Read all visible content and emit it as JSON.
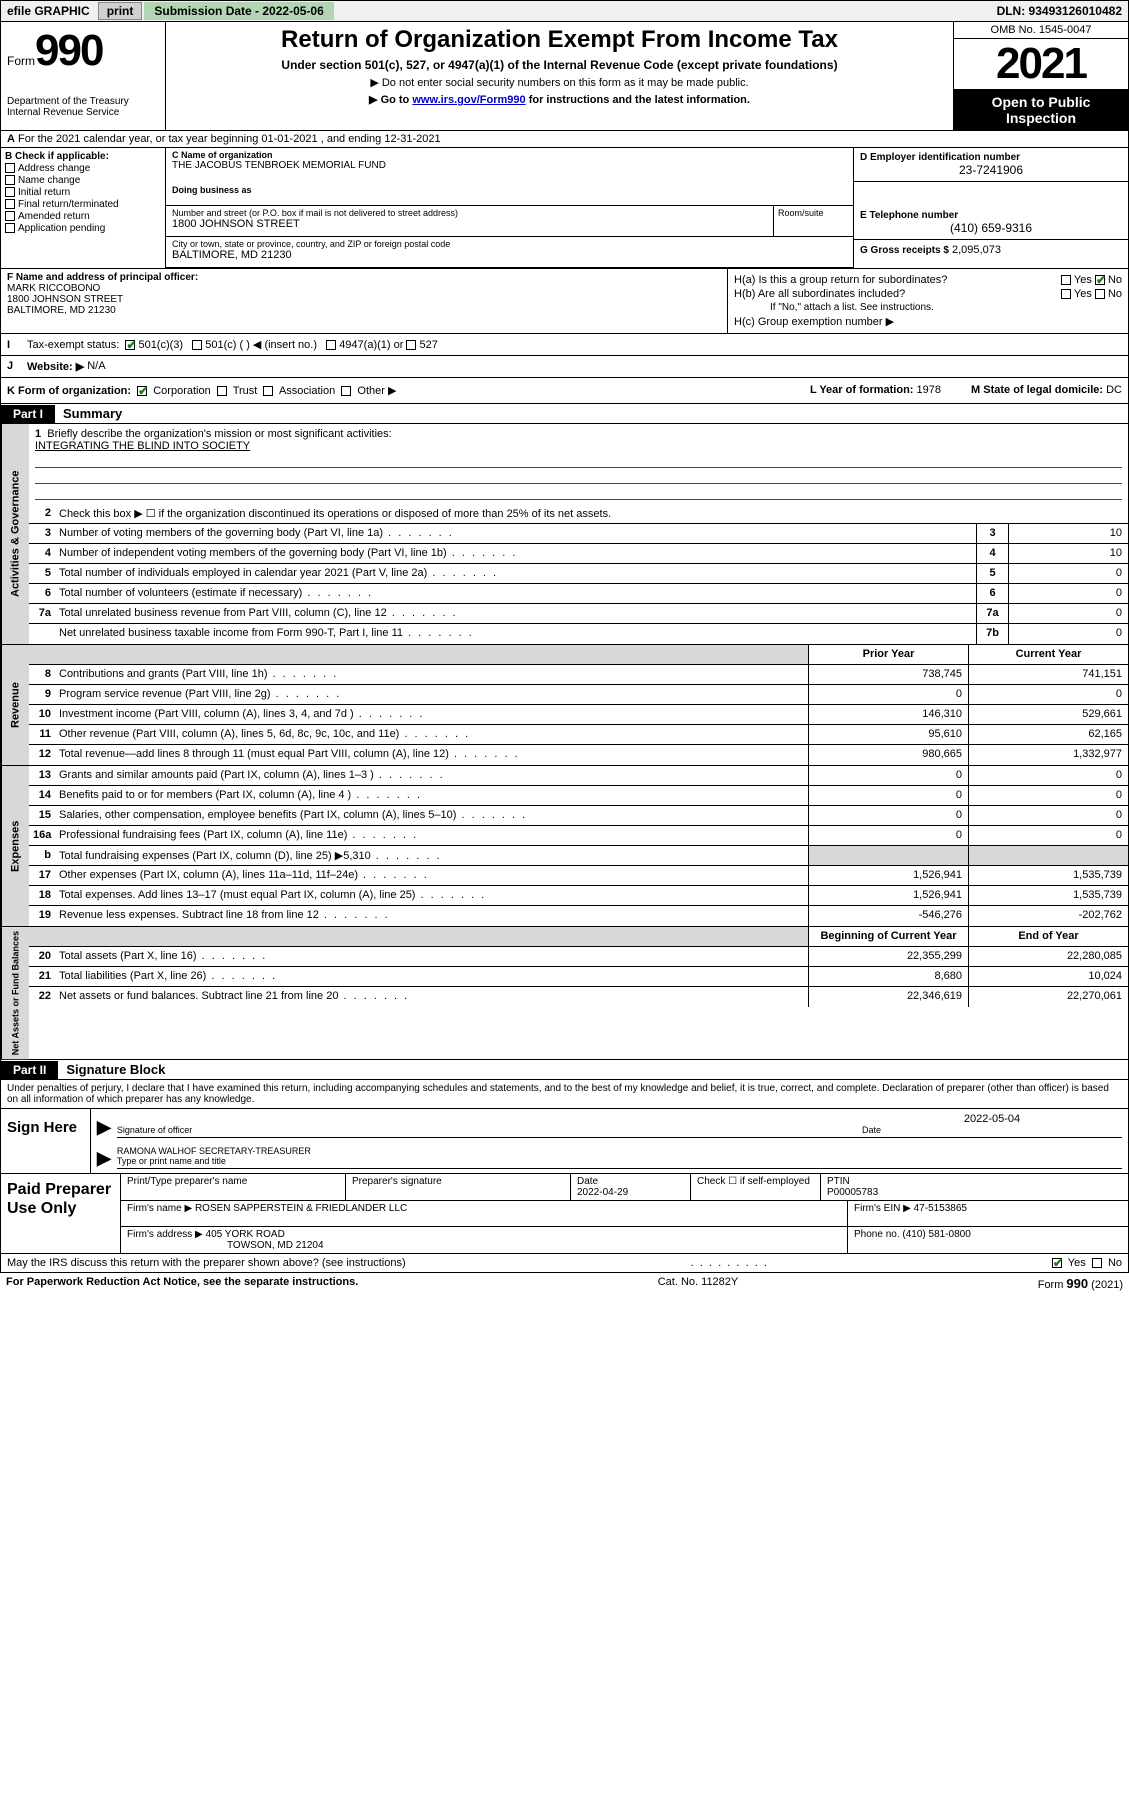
{
  "topbar": {
    "efile": "efile GRAPHIC",
    "print": "print",
    "sub_label": "Submission Date - 2022-05-06",
    "dln": "DLN: 93493126010482"
  },
  "hdr": {
    "form_word": "Form",
    "form_num": "990",
    "title": "Return of Organization Exempt From Income Tax",
    "sub1": "Under section 501(c), 527, or 4947(a)(1) of the Internal Revenue Code (except private foundations)",
    "sub2": "▶ Do not enter social security numbers on this form as it may be made public.",
    "sub3_pre": "▶ Go to ",
    "sub3_link": "www.irs.gov/Form990",
    "sub3_post": " for instructions and the latest information.",
    "dept": "Department of the Treasury\nInternal Revenue Service",
    "omb": "OMB No. 1545-0047",
    "year": "2021",
    "open": "Open to Public Inspection"
  },
  "row_a": "For the 2021 calendar year, or tax year beginning 01-01-2021   , and ending 12-31-2021",
  "b": {
    "hdr": "B Check if applicable:",
    "items": [
      "Address change",
      "Name change",
      "Initial return",
      "Final return/terminated",
      "Amended return",
      "Application pending"
    ]
  },
  "c": {
    "name_lbl": "C Name of organization",
    "name": "THE JACOBUS TENBROEK MEMORIAL FUND",
    "dba_lbl": "Doing business as",
    "addr_lbl": "Number and street (or P.O. box if mail is not delivered to street address)",
    "addr": "1800 JOHNSON STREET",
    "room_lbl": "Room/suite",
    "city_lbl": "City or town, state or province, country, and ZIP or foreign postal code",
    "city": "BALTIMORE, MD  21230"
  },
  "d": {
    "lbl": "D Employer identification number",
    "val": "23-7241906"
  },
  "e": {
    "lbl": "E Telephone number",
    "val": "(410) 659-9316"
  },
  "g": {
    "lbl": "G Gross receipts $",
    "val": "2,095,073"
  },
  "f": {
    "lbl": "F  Name and address of principal officer:",
    "name": "MARK RICCOBONO",
    "addr1": "1800 JOHNSON STREET",
    "addr2": "BALTIMORE, MD  21230"
  },
  "h": {
    "a_lbl": "H(a)  Is this a group return for subordinates?",
    "b_lbl": "H(b)  Are all subordinates included?",
    "b_note": "If \"No,\" attach a list. See instructions.",
    "c_lbl": "H(c)  Group exemption number ▶",
    "yes": "Yes",
    "no": "No"
  },
  "i": {
    "lbl": "Tax-exempt status:",
    "o1": "501(c)(3)",
    "o2": "501(c) (  ) ◀ (insert no.)",
    "o3": "4947(a)(1) or",
    "o4": "527"
  },
  "j": {
    "lbl": "Website: ▶",
    "val": "N/A"
  },
  "k": {
    "lbl": "K Form of organization:",
    "o1": "Corporation",
    "o2": "Trust",
    "o3": "Association",
    "o4": "Other ▶",
    "l_lbl": "L Year of formation:",
    "l_val": "1978",
    "m_lbl": "M State of legal domicile:",
    "m_val": "DC"
  },
  "part1": {
    "hdr": "Part I",
    "title": "Summary"
  },
  "briefly": {
    "num": "1",
    "lbl": "Briefly describe the organization's mission or most significant activities:",
    "val": "INTEGRATING THE BLIND INTO SOCIETY"
  },
  "gov_lines": [
    {
      "num": "2",
      "desc": "Check this box ▶ ☐  if the organization discontinued its operations or disposed of more than 25% of its net assets.",
      "box": "",
      "val": ""
    },
    {
      "num": "3",
      "desc": "Number of voting members of the governing body (Part VI, line 1a)",
      "box": "3",
      "val": "10"
    },
    {
      "num": "4",
      "desc": "Number of independent voting members of the governing body (Part VI, line 1b)",
      "box": "4",
      "val": "10"
    },
    {
      "num": "5",
      "desc": "Total number of individuals employed in calendar year 2021 (Part V, line 2a)",
      "box": "5",
      "val": "0"
    },
    {
      "num": "6",
      "desc": "Total number of volunteers (estimate if necessary)",
      "box": "6",
      "val": "0"
    },
    {
      "num": "7a",
      "desc": "Total unrelated business revenue from Part VIII, column (C), line 12",
      "box": "7a",
      "val": "0"
    },
    {
      "num": "",
      "desc": "Net unrelated business taxable income from Form 990-T, Part I, line 11",
      "box": "7b",
      "val": "0"
    }
  ],
  "rev_hdr": {
    "c1": "Prior Year",
    "c2": "Current Year"
  },
  "rev_lines": [
    {
      "num": "8",
      "desc": "Contributions and grants (Part VIII, line 1h)",
      "v1": "738,745",
      "v2": "741,151"
    },
    {
      "num": "9",
      "desc": "Program service revenue (Part VIII, line 2g)",
      "v1": "0",
      "v2": "0"
    },
    {
      "num": "10",
      "desc": "Investment income (Part VIII, column (A), lines 3, 4, and 7d )",
      "v1": "146,310",
      "v2": "529,661"
    },
    {
      "num": "11",
      "desc": "Other revenue (Part VIII, column (A), lines 5, 6d, 8c, 9c, 10c, and 11e)",
      "v1": "95,610",
      "v2": "62,165"
    },
    {
      "num": "12",
      "desc": "Total revenue—add lines 8 through 11 (must equal Part VIII, column (A), line 12)",
      "v1": "980,665",
      "v2": "1,332,977"
    }
  ],
  "exp_lines": [
    {
      "num": "13",
      "desc": "Grants and similar amounts paid (Part IX, column (A), lines 1–3 )",
      "v1": "0",
      "v2": "0"
    },
    {
      "num": "14",
      "desc": "Benefits paid to or for members (Part IX, column (A), line 4 )",
      "v1": "0",
      "v2": "0"
    },
    {
      "num": "15",
      "desc": "Salaries, other compensation, employee benefits (Part IX, column (A), lines 5–10)",
      "v1": "0",
      "v2": "0"
    },
    {
      "num": "16a",
      "desc": "Professional fundraising fees (Part IX, column (A), line 11e)",
      "v1": "0",
      "v2": "0"
    },
    {
      "num": "b",
      "desc": "Total fundraising expenses (Part IX, column (D), line 25) ▶5,310",
      "v1": "",
      "v2": "",
      "grey": true
    },
    {
      "num": "17",
      "desc": "Other expenses (Part IX, column (A), lines 11a–11d, 11f–24e)",
      "v1": "1,526,941",
      "v2": "1,535,739"
    },
    {
      "num": "18",
      "desc": "Total expenses. Add lines 13–17 (must equal Part IX, column (A), line 25)",
      "v1": "1,526,941",
      "v2": "1,535,739"
    },
    {
      "num": "19",
      "desc": "Revenue less expenses. Subtract line 18 from line 12",
      "v1": "-546,276",
      "v2": "-202,762"
    }
  ],
  "na_hdr": {
    "c1": "Beginning of Current Year",
    "c2": "End of Year"
  },
  "na_lines": [
    {
      "num": "20",
      "desc": "Total assets (Part X, line 16)",
      "v1": "22,355,299",
      "v2": "22,280,085"
    },
    {
      "num": "21",
      "desc": "Total liabilities (Part X, line 26)",
      "v1": "8,680",
      "v2": "10,024"
    },
    {
      "num": "22",
      "desc": "Net assets or fund balances. Subtract line 21 from line 20",
      "v1": "22,346,619",
      "v2": "22,270,061"
    }
  ],
  "part2": {
    "hdr": "Part II",
    "title": "Signature Block"
  },
  "penalties": "Under penalties of perjury, I declare that I have examined this return, including accompanying schedules and statements, and to the best of my knowledge and belief, it is true, correct, and complete. Declaration of preparer (other than officer) is based on all information of which preparer has any knowledge.",
  "sign": {
    "here": "Sign Here",
    "sig_lbl": "Signature of officer",
    "date_val": "2022-05-04",
    "date_lbl": "Date",
    "name": "RAMONA WALHOF  SECRETARY-TREASURER",
    "name_lbl": "Type or print name and title"
  },
  "paid": {
    "title": "Paid Preparer Use Only",
    "r1": {
      "c1_lbl": "Print/Type preparer's name",
      "c2_lbl": "Preparer's signature",
      "c3_lbl": "Date",
      "c3_val": "2022-04-29",
      "c4_lbl": "Check ☐ if self-employed",
      "c5_lbl": "PTIN",
      "c5_val": "P00005783"
    },
    "r2": {
      "lbl": "Firm's name    ▶",
      "val": "ROSEN SAPPERSTEIN & FRIEDLANDER LLC",
      "ein_lbl": "Firm's EIN ▶",
      "ein": "47-5153865"
    },
    "r3": {
      "lbl": "Firm's address ▶",
      "val1": "405 YORK ROAD",
      "val2": "TOWSON, MD  21204",
      "ph_lbl": "Phone no.",
      "ph": "(410) 581-0800"
    }
  },
  "may": {
    "q": "May the IRS discuss this return with the preparer shown above? (see instructions)",
    "yes": "Yes",
    "no": "No"
  },
  "footer": {
    "l": "For Paperwork Reduction Act Notice, see the separate instructions.",
    "m": "Cat. No. 11282Y",
    "r_pre": "Form ",
    "r_b": "990",
    "r_post": " (2021)"
  },
  "strips": {
    "gov": "Activities & Governance",
    "rev": "Revenue",
    "exp": "Expenses",
    "na": "Net Assets or Fund Balances"
  }
}
